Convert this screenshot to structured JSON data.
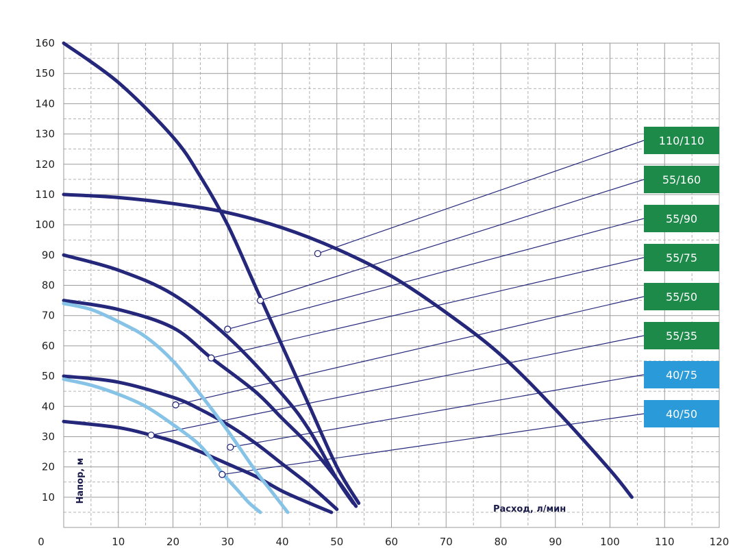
{
  "chart_data": {
    "type": "line",
    "xlabel": "Расход, л/мин",
    "ylabel": "Напор, м",
    "xlim": [
      0,
      120
    ],
    "ylim": [
      0,
      160
    ],
    "x_ticks": [
      0,
      10,
      20,
      30,
      40,
      50,
      60,
      70,
      80,
      90,
      100,
      110,
      120
    ],
    "y_ticks": [
      10,
      20,
      30,
      40,
      50,
      60,
      70,
      80,
      90,
      100,
      110,
      120,
      130,
      140,
      150,
      160
    ],
    "grid": true,
    "legend_position": "right",
    "colors": {
      "dark_curve": "#24277a",
      "light_curve": "#86c3e6",
      "green_box": "#1e8a4a",
      "blue_box": "#2a9ad8",
      "grid": "#9a9a9a"
    },
    "series": [
      {
        "name": "110/110",
        "color_key": "dark",
        "box": "green",
        "x": [
          0,
          10,
          20,
          30,
          40,
          50,
          60,
          70,
          80,
          90,
          100,
          104
        ],
        "y": [
          110,
          109,
          107,
          104,
          99,
          92,
          83,
          71,
          57,
          39,
          19,
          10
        ],
        "marker": [
          46.5,
          90.5
        ]
      },
      {
        "name": "55/160",
        "color_key": "dark",
        "box": "green",
        "x": [
          0,
          10,
          20,
          25,
          30,
          35,
          40,
          45,
          50,
          54
        ],
        "y": [
          160,
          147,
          129,
          116,
          100,
          80,
          60,
          40,
          20,
          8
        ],
        "marker": [
          36,
          75
        ]
      },
      {
        "name": "55/90",
        "color_key": "dark",
        "box": "green",
        "x": [
          0,
          10,
          20,
          30,
          40,
          45,
          50,
          53
        ],
        "y": [
          90,
          85,
          77,
          63,
          44,
          32,
          16,
          8
        ],
        "marker": [
          30,
          65.5
        ]
      },
      {
        "name": "55/75",
        "color_key": "dark",
        "box": "green",
        "x": [
          0,
          10,
          20,
          27,
          35,
          40,
          45,
          50,
          53.5
        ],
        "y": [
          75,
          72,
          66,
          56,
          45,
          36,
          27,
          16,
          7
        ],
        "marker": [
          27,
          56
        ]
      },
      {
        "name": "55/50",
        "color_key": "dark",
        "box": "green",
        "x": [
          0,
          10,
          20,
          25,
          30,
          35,
          40,
          45,
          50
        ],
        "y": [
          50,
          48,
          43,
          39,
          34,
          28,
          21,
          14,
          6
        ],
        "marker": [
          20.5,
          40.5
        ]
      },
      {
        "name": "55/35",
        "color_key": "dark",
        "box": "green",
        "x": [
          0,
          10,
          16,
          20,
          25,
          30,
          35,
          40,
          45,
          49
        ],
        "y": [
          35,
          33,
          30.5,
          28.5,
          25,
          21,
          17,
          12,
          8,
          5
        ],
        "marker": [
          16,
          30.5
        ]
      },
      {
        "name": "40/75",
        "color_key": "light",
        "box": "blue",
        "x": [
          0,
          5,
          10,
          15,
          20,
          25,
          30,
          35,
          38,
          41
        ],
        "y": [
          74,
          72,
          68,
          63,
          55,
          44,
          32,
          19,
          12,
          5
        ],
        "marker": [
          30.5,
          26.5
        ]
      },
      {
        "name": "40/50",
        "color_key": "light",
        "box": "blue",
        "x": [
          0,
          5,
          10,
          15,
          20,
          25,
          29,
          32,
          34,
          36
        ],
        "y": [
          49,
          47,
          44,
          40,
          34,
          27,
          18,
          12,
          8,
          5
        ],
        "marker": [
          29,
          17.5
        ]
      }
    ]
  }
}
